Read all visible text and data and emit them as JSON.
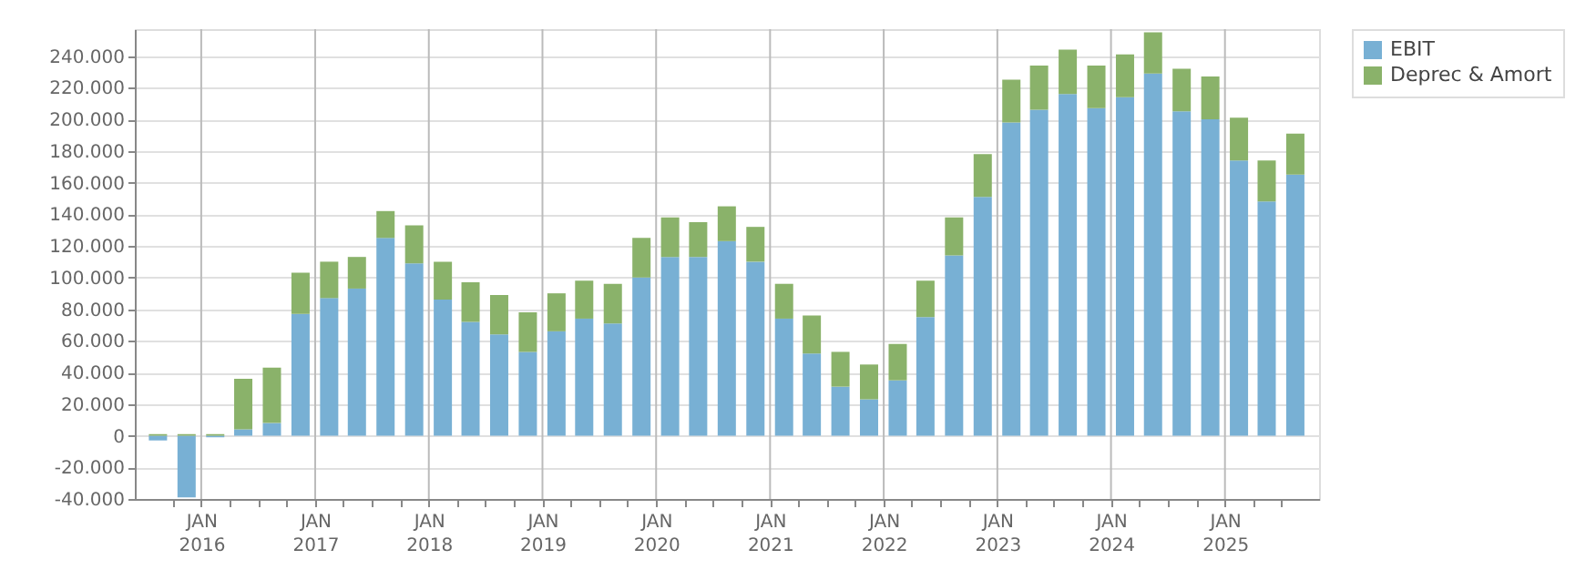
{
  "chart_data": {
    "type": "bar",
    "stacked": true,
    "x": [
      "2015-08-15",
      "2015-11-15",
      "2016-02-15",
      "2016-05-15",
      "2016-08-15",
      "2016-11-15",
      "2017-02-15",
      "2017-05-15",
      "2017-08-15",
      "2017-11-15",
      "2018-02-15",
      "2018-05-15",
      "2018-08-15",
      "2018-11-15",
      "2019-02-15",
      "2019-05-15",
      "2019-08-15",
      "2019-11-15",
      "2020-02-15",
      "2020-05-15",
      "2020-08-15",
      "2020-11-15",
      "2021-02-15",
      "2021-05-15",
      "2021-08-15",
      "2021-11-15",
      "2022-02-15",
      "2022-05-15",
      "2022-08-15",
      "2022-11-15",
      "2023-02-15",
      "2023-05-15",
      "2023-08-15",
      "2023-11-15",
      "2024-02-15",
      "2024-05-15",
      "2024-08-15",
      "2024-11-15",
      "2025-02-15",
      "2025-05-15",
      "2025-08-15"
    ],
    "series": [
      {
        "name": "EBIT",
        "color": "#78b0d4",
        "values": [
          -3000,
          -39000,
          -1000,
          4000,
          8000,
          77000,
          87000,
          93000,
          125000,
          109000,
          86000,
          72000,
          64000,
          53000,
          66000,
          74000,
          71000,
          100000,
          113000,
          113000,
          123000,
          110000,
          74000,
          52000,
          31000,
          23000,
          35000,
          75000,
          114000,
          151000,
          198000,
          206000,
          216000,
          207000,
          214000,
          229000,
          205000,
          200000,
          174000,
          148000,
          165000
        ]
      },
      {
        "name": "Deprec & Amort",
        "color": "#8ab26a",
        "values": [
          1000,
          1000,
          1000,
          32000,
          35000,
          26000,
          23000,
          20000,
          17000,
          24000,
          24000,
          25000,
          25000,
          25000,
          24000,
          24000,
          25000,
          25000,
          25000,
          22000,
          22000,
          22000,
          22000,
          24000,
          22000,
          22000,
          23000,
          23000,
          24000,
          27000,
          27000,
          28000,
          28000,
          27000,
          27000,
          26000,
          27000,
          27000,
          27000,
          26000,
          26000
        ]
      }
    ],
    "xlim": [
      "2015-07-01",
      "2025-10-01"
    ],
    "xticks": [
      {
        "value": "2015-10-01",
        "label": null
      },
      {
        "value": "2016-01-01",
        "label": "JAN 2016"
      },
      {
        "value": "2016-04-01",
        "label": null
      },
      {
        "value": "2016-07-01",
        "label": null
      },
      {
        "value": "2016-10-01",
        "label": null
      },
      {
        "value": "2017-01-01",
        "label": "JAN 2017"
      },
      {
        "value": "2017-04-01",
        "label": null
      },
      {
        "value": "2017-07-01",
        "label": null
      },
      {
        "value": "2017-10-01",
        "label": null
      },
      {
        "value": "2018-01-01",
        "label": "JAN 2018"
      },
      {
        "value": "2018-04-01",
        "label": null
      },
      {
        "value": "2018-07-01",
        "label": null
      },
      {
        "value": "2018-10-01",
        "label": null
      },
      {
        "value": "2019-01-01",
        "label": "JAN 2019"
      },
      {
        "value": "2019-04-01",
        "label": null
      },
      {
        "value": "2019-07-01",
        "label": null
      },
      {
        "value": "2019-10-01",
        "label": null
      },
      {
        "value": "2020-01-01",
        "label": "JAN 2020"
      },
      {
        "value": "2020-04-01",
        "label": null
      },
      {
        "value": "2020-07-01",
        "label": null
      },
      {
        "value": "2020-10-01",
        "label": null
      },
      {
        "value": "2021-01-01",
        "label": "JAN 2021"
      },
      {
        "value": "2021-04-01",
        "label": null
      },
      {
        "value": "2021-07-01",
        "label": null
      },
      {
        "value": "2021-10-01",
        "label": null
      },
      {
        "value": "2022-01-01",
        "label": "JAN 2022"
      },
      {
        "value": "2022-04-01",
        "label": null
      },
      {
        "value": "2022-07-01",
        "label": null
      },
      {
        "value": "2022-10-01",
        "label": null
      },
      {
        "value": "2023-01-01",
        "label": "JAN 2023"
      },
      {
        "value": "2023-04-01",
        "label": null
      },
      {
        "value": "2023-07-01",
        "label": null
      },
      {
        "value": "2023-10-01",
        "label": null
      },
      {
        "value": "2024-01-01",
        "label": "JAN 2024"
      },
      {
        "value": "2024-04-01",
        "label": null
      },
      {
        "value": "2024-07-01",
        "label": null
      },
      {
        "value": "2024-10-01",
        "label": null
      },
      {
        "value": "2025-01-01",
        "label": "JAN 2025"
      },
      {
        "value": "2025-04-01",
        "label": null
      },
      {
        "value": "2025-07-01",
        "label": null
      }
    ],
    "ylim": [
      -40000,
      257000
    ],
    "yticks": [
      {
        "value": -40000,
        "label": "-40.000"
      },
      {
        "value": -20000,
        "label": "-20.000"
      },
      {
        "value": 0,
        "label": "0"
      },
      {
        "value": 20000,
        "label": "20.000"
      },
      {
        "value": 40000,
        "label": "40.000"
      },
      {
        "value": 60000,
        "label": "60.000"
      },
      {
        "value": 80000,
        "label": "80.000"
      },
      {
        "value": 100000,
        "label": "100.000"
      },
      {
        "value": 120000,
        "label": "120.000"
      },
      {
        "value": 140000,
        "label": "140.000"
      },
      {
        "value": 160000,
        "label": "160.000"
      },
      {
        "value": 180000,
        "label": "180.000"
      },
      {
        "value": 200000,
        "label": "200.000"
      },
      {
        "value": 220000,
        "label": "220.000"
      },
      {
        "value": 240000,
        "label": "240.000"
      }
    ],
    "grid": true,
    "legend": "top right"
  }
}
